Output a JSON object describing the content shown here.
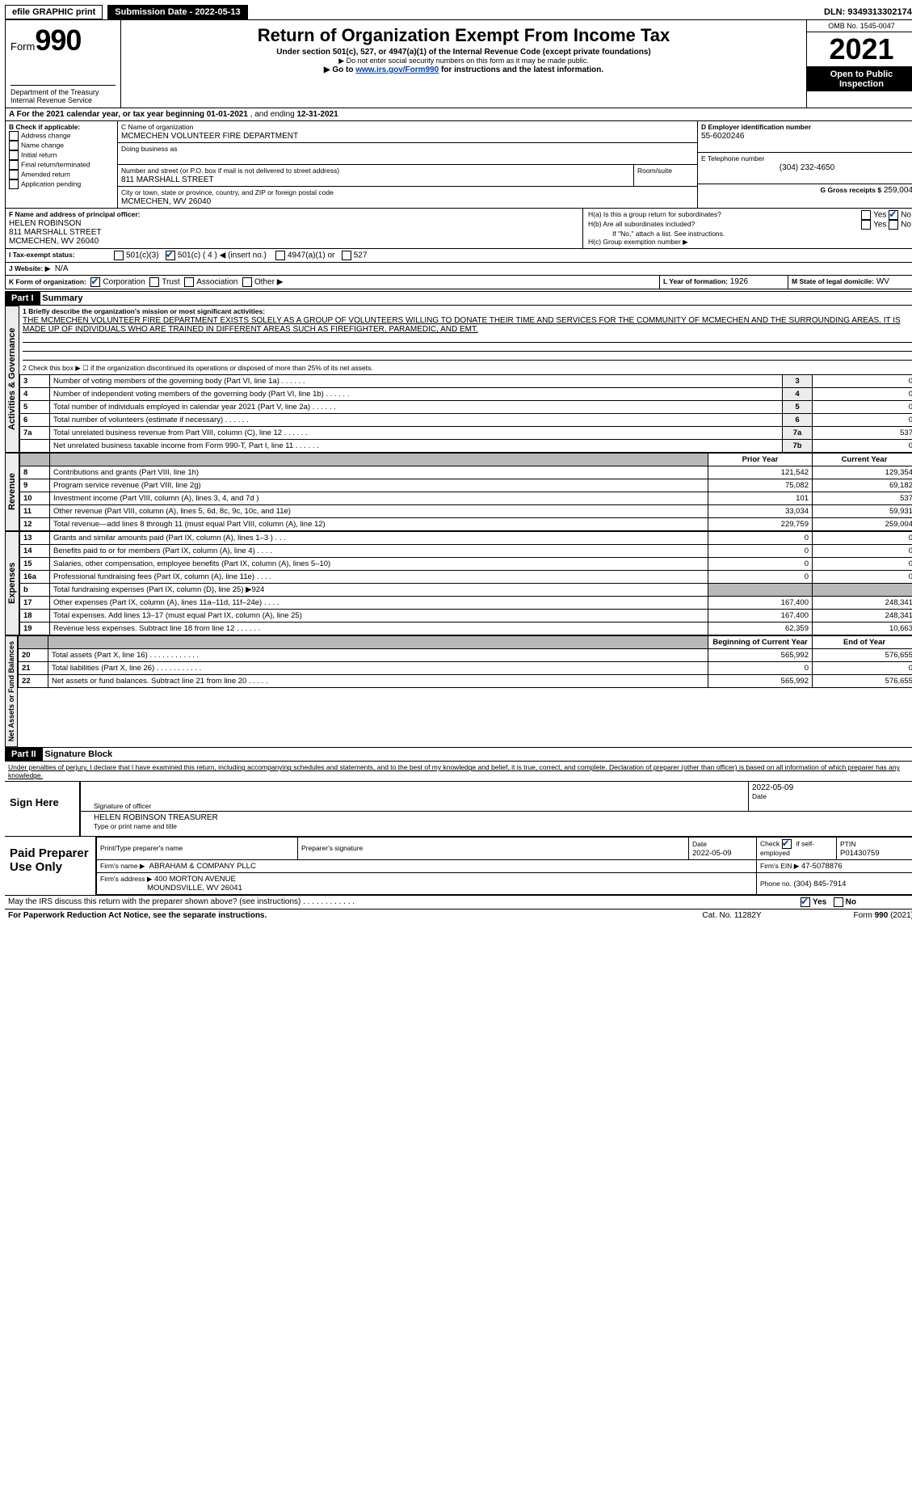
{
  "top": {
    "efile_label": "efile GRAPHIC print",
    "submission_label": "Submission Date - 2022-05-13",
    "dln_label": "DLN: 93493133021742"
  },
  "header": {
    "form_prefix": "Form",
    "form_no": "990",
    "title": "Return of Organization Exempt From Income Tax",
    "sub1": "Under section 501(c), 527, or 4947(a)(1) of the Internal Revenue Code (except private foundations)",
    "sub2": "▶ Do not enter social security numbers on this form as it may be made public.",
    "sub3_pre": "▶ Go to ",
    "sub3_link": "www.irs.gov/Form990",
    "sub3_post": " for instructions and the latest information.",
    "dept": "Department of the Treasury",
    "irs": "Internal Revenue Service",
    "omb": "OMB No. 1545-0047",
    "year": "2021",
    "opi": "Open to Public Inspection"
  },
  "A": {
    "label_a": "A For the 2021 calendar year, or tax year beginning ",
    "begin": "01-01-2021",
    "mid": "   , and ending ",
    "end": "12-31-2021"
  },
  "B": {
    "header": "B Check if applicable:",
    "items": [
      "Address change",
      "Name change",
      "Initial return",
      "Final return/terminated",
      "Amended return",
      "Application pending"
    ]
  },
  "C": {
    "label": "C Name of organization",
    "name": "MCMECHEN VOLUNTEER FIRE DEPARTMENT",
    "dba_label": "Doing business as",
    "street_label": "Number and street (or P.O. box if mail is not delivered to street address)",
    "room_label": "Room/suite",
    "street": "811 MARSHALL STREET",
    "city_label": "City or town, state or province, country, and ZIP or foreign postal code",
    "city": "MCMECHEN, WV  26040"
  },
  "D": {
    "label": "D Employer identification number",
    "val": "55-6020246"
  },
  "E": {
    "label": "E Telephone number",
    "val": "(304) 232-4650"
  },
  "G": {
    "label": "G Gross receipts $",
    "val": "259,004"
  },
  "F": {
    "label": "F Name and address of principal officer:",
    "name": "HELEN ROBINSON",
    "street": "811 MARSHALL STREET",
    "city": "MCMECHEN, WV  26040"
  },
  "H": {
    "a": "H(a)  Is this a group return for subordinates?",
    "b": "H(b)  Are all subordinates included?",
    "b_note": "If \"No,\" attach a list. See instructions.",
    "c": "H(c)  Group exemption number ▶",
    "yes": "Yes",
    "no": "No"
  },
  "I": {
    "label": "I  Tax-exempt status:",
    "o1": "501(c)(3)",
    "o2_pre": "501(c) ( ",
    "o2_val": "4",
    "o2_post": " ) ◀ (insert no.)",
    "o3": "4947(a)(1) or",
    "o4": "527"
  },
  "J": {
    "label": "J  Website: ▶",
    "val": "N/A"
  },
  "K": {
    "label": "K Form of organization:",
    "corp": "Corporation",
    "trust": "Trust",
    "assoc": "Association",
    "other": "Other ▶"
  },
  "L": {
    "label": "L Year of formation:",
    "val": "1926"
  },
  "M": {
    "label": "M State of legal domicile:",
    "val": "WV"
  },
  "partI": {
    "hdr": "Part I",
    "title": "Summary",
    "line1_label": "1  Briefly describe the organization's mission or most significant activities:",
    "line1_text": "THE MCMECHEN VOLUNTEER FIRE DEPARTMENT EXISTS SOLELY AS A GROUP OF VOLUNTEERS WILLING TO DONATE THEIR TIME AND SERVICES FOR THE COMMUNITY OF MCMECHEN AND THE SURROUNDING AREAS. IT IS MADE UP OF INDIVIDUALS WHO ARE TRAINED IN DIFFERENT AREAS SUCH AS FIREFIGHTER, PARAMEDIC, AND EMT.",
    "line2": "2   Check this box ▶ ☐  if the organization discontinued its operations or disposed of more than 25% of its net assets.",
    "rows_gov": [
      {
        "n": "3",
        "t": "Number of voting members of the governing body (Part VI, line 1a)",
        "c": "3",
        "v": "0"
      },
      {
        "n": "4",
        "t": "Number of independent voting members of the governing body (Part VI, line 1b)",
        "c": "4",
        "v": "0"
      },
      {
        "n": "5",
        "t": "Total number of individuals employed in calendar year 2021 (Part V, line 2a)",
        "c": "5",
        "v": "0"
      },
      {
        "n": "6",
        "t": "Total number of volunteers (estimate if necessary)",
        "c": "6",
        "v": "0"
      },
      {
        "n": "7a",
        "t": "Total unrelated business revenue from Part VIII, column (C), line 12",
        "c": "7a",
        "v": "537"
      },
      {
        "n": "",
        "t": "Net unrelated business taxable income from Form 990-T, Part I, line 11",
        "c": "7b",
        "v": "0"
      }
    ],
    "col_prior": "Prior Year",
    "col_curr": "Current Year",
    "rev_rows": [
      {
        "n": "8",
        "t": "Contributions and grants (Part VIII, line 1h)",
        "p": "121,542",
        "c": "129,354"
      },
      {
        "n": "9",
        "t": "Program service revenue (Part VIII, line 2g)",
        "p": "75,082",
        "c": "69,182"
      },
      {
        "n": "10",
        "t": "Investment income (Part VIII, column (A), lines 3, 4, and 7d )",
        "p": "101",
        "c": "537"
      },
      {
        "n": "11",
        "t": "Other revenue (Part VIII, column (A), lines 5, 6d, 8c, 9c, 10c, and 11e)",
        "p": "33,034",
        "c": "59,931"
      },
      {
        "n": "12",
        "t": "Total revenue—add lines 8 through 11 (must equal Part VIII, column (A), line 12)",
        "p": "229,759",
        "c": "259,004"
      }
    ],
    "exp_rows": [
      {
        "n": "13",
        "t": "Grants and similar amounts paid (Part IX, column (A), lines 1–3 )  .   .   .",
        "p": "0",
        "c": "0"
      },
      {
        "n": "14",
        "t": "Benefits paid to or for members (Part IX, column (A), line 4)  .   .   .   .",
        "p": "0",
        "c": "0"
      },
      {
        "n": "15",
        "t": "Salaries, other compensation, employee benefits (Part IX, column (A), lines 5–10)",
        "p": "0",
        "c": "0"
      },
      {
        "n": "16a",
        "t": "Professional fundraising fees (Part IX, column (A), line 11e)  .   .   .   .",
        "p": "0",
        "c": "0"
      },
      {
        "n": "b",
        "t": "Total fundraising expenses (Part IX, column (D), line 25) ▶924",
        "p": "",
        "c": ""
      },
      {
        "n": "17",
        "t": "Other expenses (Part IX, column (A), lines 11a–11d, 11f–24e)  .   .   .   .",
        "p": "167,400",
        "c": "248,341"
      },
      {
        "n": "18",
        "t": "Total expenses. Add lines 13–17 (must equal Part IX, column (A), line 25)",
        "p": "167,400",
        "c": "248,341"
      },
      {
        "n": "19",
        "t": "Revenue less expenses. Subtract line 18 from line 12  .   .   .   .   .   .",
        "p": "62,359",
        "c": "10,663"
      }
    ],
    "col_boy": "Beginning of Current Year",
    "col_eoy": "End of Year",
    "na_rows": [
      {
        "n": "20",
        "t": "Total assets (Part X, line 16)  .   .   .   .   .   .   .   .   .   .   .   .",
        "p": "565,992",
        "c": "576,655"
      },
      {
        "n": "21",
        "t": "Total liabilities (Part X, line 26)  .   .   .   .   .   .   .   .   .   .   .",
        "p": "0",
        "c": "0"
      },
      {
        "n": "22",
        "t": "Net assets or fund balances. Subtract line 21 from line 20  .   .   .   .   .",
        "p": "565,992",
        "c": "576,655"
      }
    ],
    "tab_gov": "Activities & Governance",
    "tab_rev": "Revenue",
    "tab_exp": "Expenses",
    "tab_na": "Net Assets or Fund Balances"
  },
  "partII": {
    "hdr": "Part II",
    "title": "Signature Block",
    "decl": "Under penalties of perjury, I declare that I have examined this return, including accompanying schedules and statements, and to the best of my knowledge and belief, it is true, correct, and complete. Declaration of preparer (other than officer) is based on all information of which preparer has any knowledge."
  },
  "sign": {
    "here": "Sign Here",
    "sig_officer": "Signature of officer",
    "date_lbl": "Date",
    "date": "2022-05-09",
    "name": "HELEN ROBINSON  TREASURER",
    "type_lbl": "Type or print name and title"
  },
  "paid": {
    "hdr": "Paid Preparer Use Only",
    "c1": "Print/Type preparer's name",
    "c2": "Preparer's signature",
    "c3": "Date",
    "c3v": "2022-05-09",
    "c4a": "Check",
    "c4b": "if self-employed",
    "c5": "PTIN",
    "c5v": "P01430759",
    "firm_lbl": "Firm's name    ▶",
    "firm": "ABRAHAM & COMPANY PLLC",
    "ein_lbl": "Firm's EIN ▶",
    "ein": "47-5078876",
    "addr_lbl": "Firm's address ▶",
    "addr1": "400 MORTON AVENUE",
    "addr2": "MOUNDSVILLE, WV  26041",
    "phone_lbl": "Phone no.",
    "phone": "(304) 845-7914"
  },
  "footer": {
    "q": "May the IRS discuss this return with the preparer shown above? (see instructions)  .   .   .   .   .   .   .   .   .   .   .   .",
    "yes": "Yes",
    "no": "No",
    "pra": "For Paperwork Reduction Act Notice, see the separate instructions.",
    "cat": "Cat. No. 11282Y",
    "form": "Form 990 (2021)"
  },
  "colors": {
    "link": "#0040b0",
    "shade": "#b8b8b8",
    "vtab": "#ececec"
  }
}
